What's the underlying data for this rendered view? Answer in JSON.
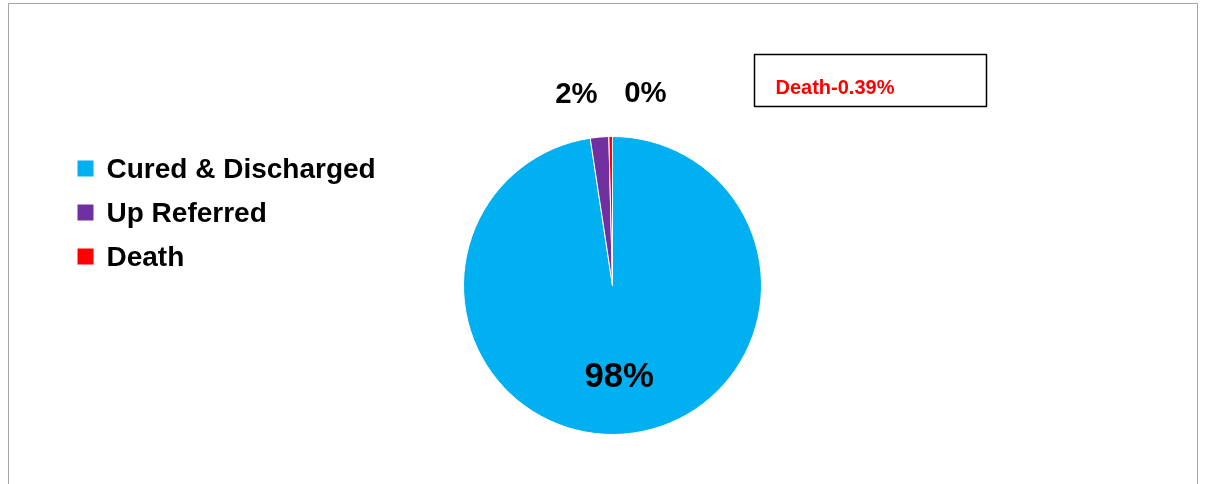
{
  "chart_data": {
    "type": "pie",
    "categories": [
      "Cured & Discharged",
      "Up Referred",
      "Death"
    ],
    "values": [
      97.61,
      2.0,
      0.39
    ],
    "value_labels": [
      "98%",
      "2%",
      "0%"
    ],
    "colors": [
      "#00b0f0",
      "#7030a0",
      "#ff0000"
    ],
    "legend": "left",
    "annotations": [
      "Death-0.39%"
    ]
  }
}
